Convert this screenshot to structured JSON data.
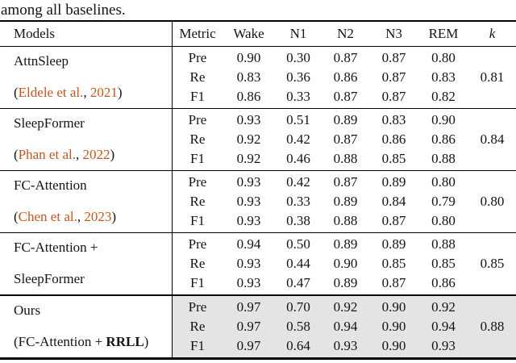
{
  "page": {
    "intro_text": "among all baselines."
  },
  "colors": {
    "citation_link": "#C4571E",
    "highlight_row": "#E5E4E2",
    "rule": "#000000"
  },
  "table": {
    "header": {
      "models": "Models",
      "metric": "Metric",
      "classes": [
        "Wake",
        "N1",
        "N2",
        "N3",
        "REM"
      ],
      "kappa": "k"
    },
    "rows": [
      {
        "model": {
          "line1": "AttnSleep",
          "line2": {
            "open": "(",
            "author": "Eldele et al.",
            "comma": ", ",
            "year": "2021",
            "close": ")"
          }
        },
        "metrics": [
          {
            "label": "Pre",
            "values": [
              "0.90",
              "0.30",
              "0.87",
              "0.87",
              "0.80"
            ]
          },
          {
            "label": "Re",
            "values": [
              "0.83",
              "0.36",
              "0.86",
              "0.87",
              "0.83"
            ]
          },
          {
            "label": "F1",
            "values": [
              "0.86",
              "0.33",
              "0.87",
              "0.87",
              "0.82"
            ]
          }
        ],
        "kappa": "0.81"
      },
      {
        "model": {
          "line1": "SleepFormer",
          "line2": {
            "open": "(",
            "author": "Phan et al.",
            "comma": ", ",
            "year": "2022",
            "close": ")"
          }
        },
        "metrics": [
          {
            "label": "Pre",
            "values": [
              "0.93",
              "0.51",
              "0.89",
              "0.83",
              "0.90"
            ]
          },
          {
            "label": "Re",
            "values": [
              "0.92",
              "0.42",
              "0.87",
              "0.86",
              "0.86"
            ]
          },
          {
            "label": "F1",
            "values": [
              "0.92",
              "0.46",
              "0.88",
              "0.85",
              "0.88"
            ]
          }
        ],
        "kappa": "0.84"
      },
      {
        "model": {
          "line1": "FC-Attention",
          "line2": {
            "open": "(",
            "author": "Chen et al.",
            "comma": ", ",
            "year": "2023",
            "close": ")"
          }
        },
        "metrics": [
          {
            "label": "Pre",
            "values": [
              "0.93",
              "0.42",
              "0.87",
              "0.89",
              "0.80"
            ]
          },
          {
            "label": "Re",
            "values": [
              "0.93",
              "0.33",
              "0.89",
              "0.84",
              "0.79"
            ]
          },
          {
            "label": "F1",
            "values": [
              "0.93",
              "0.38",
              "0.88",
              "0.87",
              "0.80"
            ]
          }
        ],
        "kappa": "0.80"
      },
      {
        "model": {
          "line1": "FC-Attention +",
          "line2_plain": "SleepFormer"
        },
        "metrics": [
          {
            "label": "Pre",
            "values": [
              "0.94",
              "0.50",
              "0.89",
              "0.89",
              "0.88"
            ]
          },
          {
            "label": "Re",
            "values": [
              "0.93",
              "0.44",
              "0.90",
              "0.85",
              "0.85"
            ]
          },
          {
            "label": "F1",
            "values": [
              "0.93",
              "0.47",
              "0.89",
              "0.87",
              "0.86"
            ]
          }
        ],
        "kappa": "0.85"
      },
      {
        "model": {
          "line1": "Ours",
          "line2": {
            "open": "(FC-Attention + ",
            "bold": "RRLL",
            "close": ")"
          }
        },
        "metrics": [
          {
            "label": "Pre",
            "values": [
              "0.97",
              "0.70",
              "0.92",
              "0.90",
              "0.92"
            ]
          },
          {
            "label": "Re",
            "values": [
              "0.97",
              "0.58",
              "0.94",
              "0.90",
              "0.94"
            ]
          },
          {
            "label": "F1",
            "values": [
              "0.97",
              "0.64",
              "0.93",
              "0.90",
              "0.93"
            ]
          }
        ],
        "kappa": "0.88"
      }
    ]
  }
}
